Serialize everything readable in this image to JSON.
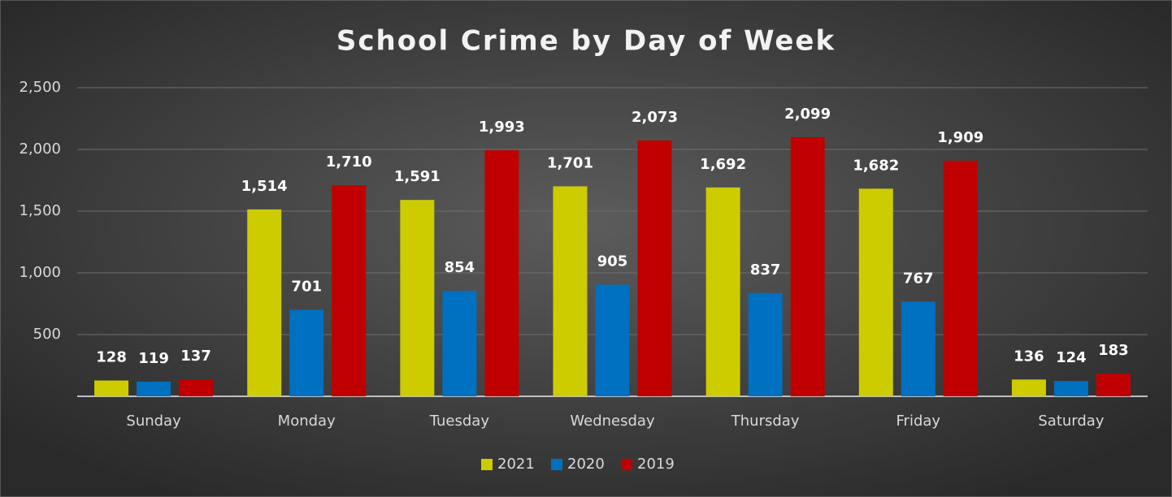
{
  "chart_data": {
    "type": "bar",
    "title": "School Crime by Day of Week",
    "categories": [
      "Sunday",
      "Monday",
      "Tuesday",
      "Wednesday",
      "Thursday",
      "Friday",
      "Saturday"
    ],
    "series": [
      {
        "name": "2021",
        "color": "#cccc00",
        "values": [
          128,
          1514,
          1591,
          1701,
          1692,
          1682,
          136
        ],
        "value_labels": [
          "128",
          "1,514",
          "1,591",
          "1,701",
          "1,692",
          "1,682",
          "136"
        ]
      },
      {
        "name": "2020",
        "color": "#0070c0",
        "values": [
          119,
          701,
          854,
          905,
          837,
          767,
          124
        ],
        "value_labels": [
          "119",
          "701",
          "854",
          "905",
          "837",
          "767",
          "124"
        ]
      },
      {
        "name": "2019",
        "color": "#c00000",
        "values": [
          137,
          1710,
          1993,
          2073,
          2099,
          1909,
          183
        ],
        "value_labels": [
          "137",
          "1,710",
          "1,993",
          "2,073",
          "2,099",
          "1,909",
          "183"
        ]
      }
    ],
    "ylim": [
      0,
      2500
    ],
    "yticks": [
      500,
      {
        "value": 1000,
        "label": "1,000"
      },
      {
        "value": 1500,
        "label": "1,500"
      },
      {
        "value": 2000,
        "label": "2,000"
      },
      {
        "value": 2500,
        "label": "2,500"
      }
    ],
    "grid": true,
    "legend": "bottom"
  }
}
